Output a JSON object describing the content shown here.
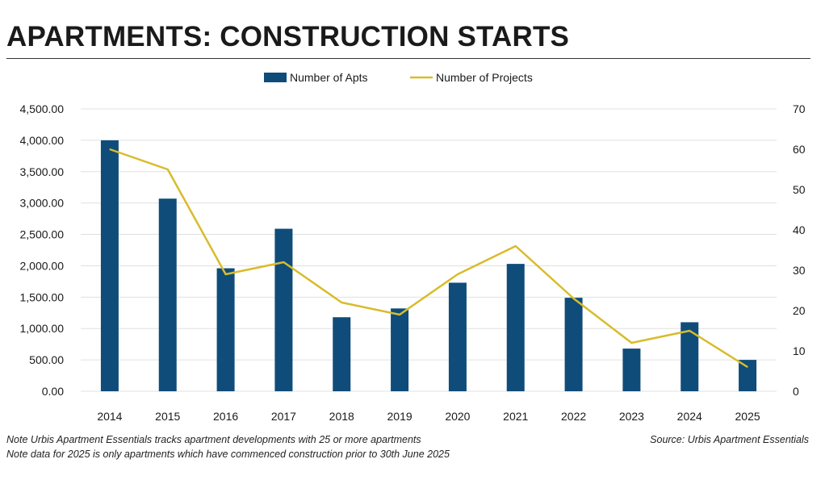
{
  "title": "APARTMENTS: CONSTRUCTION STARTS",
  "notes": [
    "Note Urbis Apartment Essentials tracks apartment developments with 25 or more apartments",
    "Note data for 2025 is only apartments which have commenced construction prior to 30th June 2025"
  ],
  "source": "Source: Urbis Apartment Essentials",
  "colors": {
    "bars": "#0f4c7a",
    "line": "#d9bb2b",
    "grid": "#e0e0e0"
  },
  "chart_data": {
    "type": "bar",
    "title": "APARTMENTS: CONSTRUCTION STARTS",
    "categories": [
      "2014",
      "2015",
      "2016",
      "2017",
      "2018",
      "2019",
      "2020",
      "2021",
      "2022",
      "2023",
      "2024",
      "2025"
    ],
    "series": [
      {
        "name": "Number of Apts",
        "type": "bar",
        "axis": "left",
        "values": [
          4000,
          3070,
          1960,
          2590,
          1180,
          1320,
          1730,
          2030,
          1490,
          680,
          1100,
          500
        ]
      },
      {
        "name": "Number of Projects",
        "type": "line",
        "axis": "right",
        "values": [
          60,
          55,
          29,
          32,
          22,
          19,
          29,
          36,
          23,
          12,
          15,
          6
        ]
      }
    ],
    "y_left": {
      "min": 0,
      "max": 4500,
      "step": 500,
      "tick_labels": [
        "0.00",
        "500.00",
        "1,000.00",
        "1,500.00",
        "2,000.00",
        "2,500.00",
        "3,000.00",
        "3,500.00",
        "4,000.00",
        "4,500.00"
      ]
    },
    "y_right": {
      "min": 0,
      "max": 70,
      "step": 10,
      "tick_labels": [
        "0",
        "10",
        "20",
        "30",
        "40",
        "50",
        "60",
        "70"
      ]
    },
    "legend_position": "top-center",
    "grid": true
  }
}
